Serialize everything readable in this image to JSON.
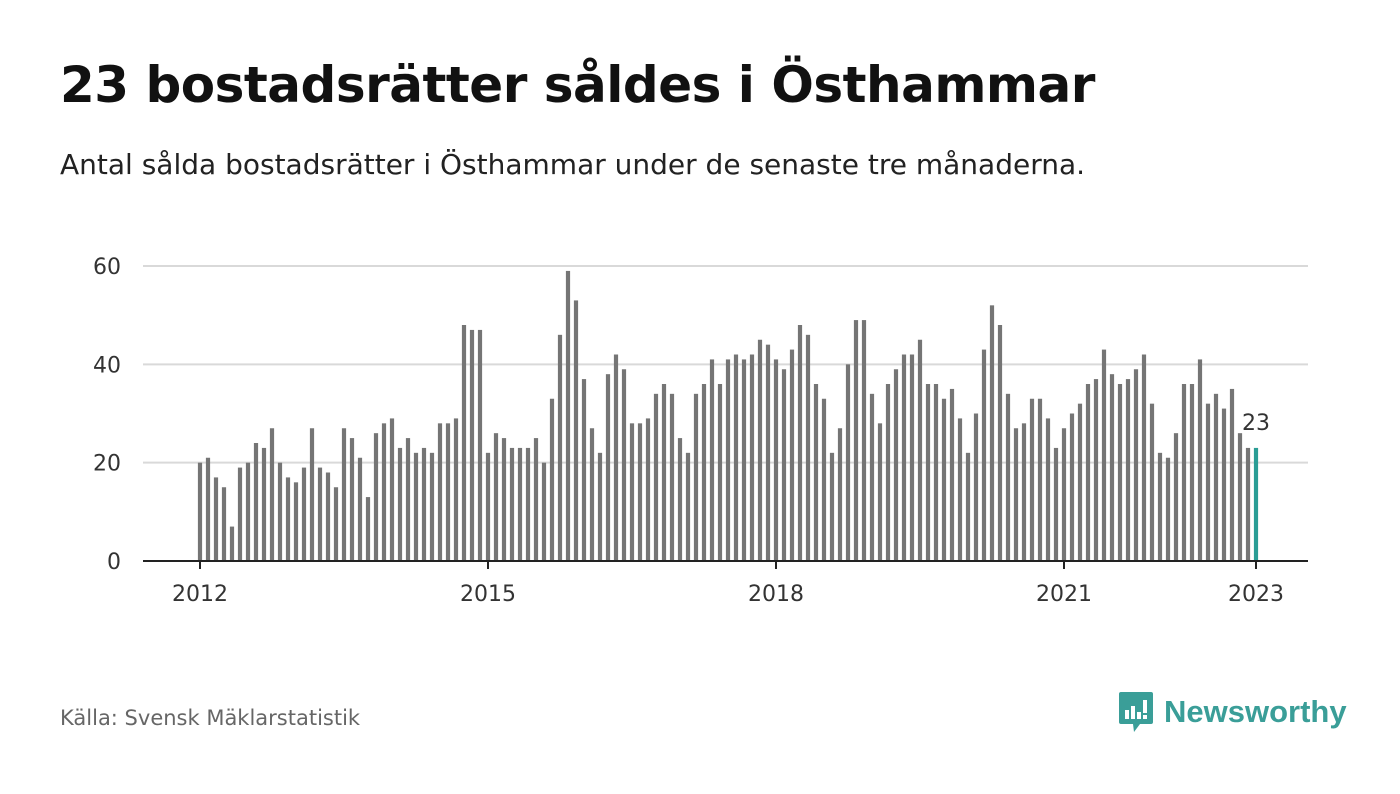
{
  "header": {
    "title": "23 bostadsrätter såldes i Östhammar",
    "subtitle": "Antal sålda bostadsrätter i Östhammar under de senaste tre månaderna."
  },
  "footer": {
    "source": "Källa: Svensk Mäklarstatistik",
    "brand": "Newsworthy"
  },
  "colors": {
    "bar": "#757575",
    "highlight": "#2a9d95",
    "grid": "#d9d9d9",
    "axis": "#222222",
    "brand": "#3a9e98"
  },
  "icons": {
    "brand_logo": "newsworthy-logo-icon"
  },
  "chart_data": {
    "type": "bar",
    "title": "",
    "xlabel": "",
    "ylabel": "",
    "ylim": [
      0,
      60
    ],
    "yticks": [
      0,
      20,
      40,
      60
    ],
    "xticks": [
      {
        "label": "2012",
        "index": 0
      },
      {
        "label": "2015",
        "index": 36
      },
      {
        "label": "2018",
        "index": 72
      },
      {
        "label": "2021",
        "index": 108
      },
      {
        "label": "2023",
        "index": 132
      }
    ],
    "grid": true,
    "start_month": "2012-01",
    "end_month": "2023-01",
    "values": [
      20,
      21,
      17,
      15,
      7,
      19,
      20,
      24,
      23,
      27,
      20,
      17,
      16,
      19,
      27,
      19,
      18,
      15,
      27,
      25,
      21,
      13,
      26,
      28,
      29,
      23,
      25,
      22,
      23,
      22,
      28,
      28,
      29,
      48,
      47,
      47,
      22,
      26,
      25,
      23,
      23,
      23,
      25,
      20,
      33,
      46,
      59,
      53,
      37,
      27,
      22,
      38,
      42,
      39,
      28,
      28,
      29,
      34,
      36,
      34,
      25,
      22,
      34,
      36,
      41,
      36,
      41,
      42,
      41,
      42,
      45,
      44,
      41,
      39,
      43,
      48,
      46,
      36,
      33,
      22,
      27,
      40,
      49,
      49,
      34,
      28,
      36,
      39,
      42,
      42,
      45,
      36,
      36,
      33,
      35,
      29,
      22,
      30,
      43,
      52,
      48,
      34,
      27,
      28,
      33,
      33,
      29,
      23,
      27,
      30,
      32,
      36,
      37,
      43,
      38,
      36,
      37,
      39,
      42,
      32,
      22,
      21,
      26,
      36,
      36,
      41,
      32,
      34,
      31,
      35,
      26,
      23,
      23
    ],
    "highlight_last": true,
    "last_label": "23"
  }
}
